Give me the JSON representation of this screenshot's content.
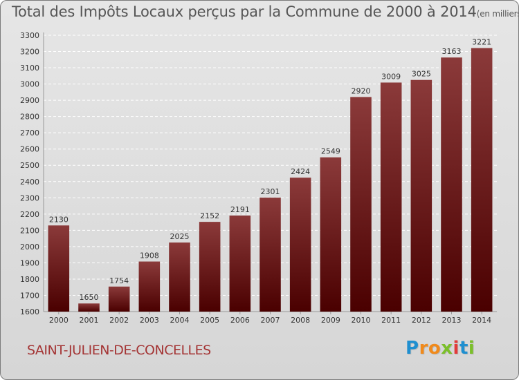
{
  "title": {
    "main": "Total des Impôts Locaux perçus par la Commune de 2000 à 2014",
    "unit": "(en milliers d'€)"
  },
  "commune": "SAINT-JULIEN-DE-CONCELLES",
  "logo": {
    "letters": [
      "P",
      "r",
      "o",
      "x",
      "i",
      "t",
      "i"
    ],
    "colors": [
      "#1f8fd0",
      "#f08a1c",
      "#f08a1c",
      "#7bbf2a",
      "#e23b3b",
      "#1f8fd0",
      "#7bbf2a"
    ]
  },
  "colors": {
    "bar_top": "#8b3a3a",
    "bar_bottom": "#4a0000",
    "grid": "#ffffff",
    "text": "#333333"
  },
  "chart_data": {
    "type": "bar",
    "categories": [
      "2000",
      "2001",
      "2002",
      "2003",
      "2004",
      "2005",
      "2006",
      "2007",
      "2008",
      "2009",
      "2010",
      "2011",
      "2012",
      "2013",
      "2014"
    ],
    "values": [
      2130,
      1650,
      1754,
      1908,
      2025,
      2152,
      2191,
      2301,
      2424,
      2549,
      2920,
      3009,
      3025,
      3163,
      3221
    ],
    "data_labels": [
      "2130",
      "1650",
      "1754",
      "1908",
      "2025",
      "2152",
      "2191",
      "2301",
      "2424",
      "2549",
      "2920",
      "3009",
      "3025",
      "3163",
      "3221"
    ],
    "ylim": [
      1600,
      3300
    ],
    "yticks": [
      "1600",
      "1700",
      "1800",
      "1900",
      "2000",
      "2100",
      "2200",
      "2300",
      "2400",
      "2500",
      "2600",
      "2700",
      "2800",
      "2900",
      "3000",
      "3100",
      "3200",
      "3300"
    ],
    "grid": true,
    "xlabel": "",
    "ylabel": ""
  }
}
